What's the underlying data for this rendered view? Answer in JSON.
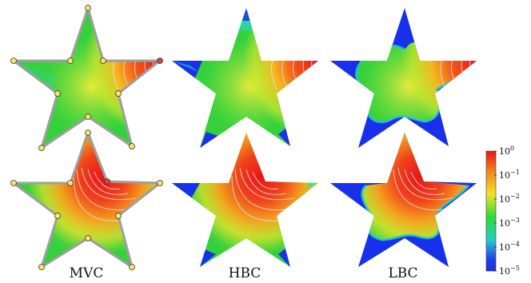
{
  "figure": {
    "columns": [
      {
        "key": "mvc",
        "label": "MVC",
        "cage_visible": true
      },
      {
        "key": "hbc",
        "label": "HBC",
        "cage_visible": false
      },
      {
        "key": "lbc",
        "label": "LBC",
        "cage_visible": false
      }
    ],
    "rows": [
      {
        "key": "outer-vertex",
        "active_vertex_index": 2
      },
      {
        "key": "inner-vertex",
        "active_vertex_index": 3
      }
    ],
    "colorbar": {
      "ticks": [
        {
          "base": "10",
          "exp": "0"
        },
        {
          "base": "10",
          "exp": "−1"
        },
        {
          "base": "10",
          "exp": "−2"
        },
        {
          "base": "10",
          "exp": "−3"
        },
        {
          "base": "10",
          "exp": "−4"
        },
        {
          "base": "10",
          "exp": "−5"
        }
      ],
      "colors": [
        "#e8161a",
        "#f58a1c",
        "#f2e226",
        "#2edb36",
        "#21cfc8",
        "#2142ea",
        "#1530e0"
      ]
    },
    "colors": {
      "cage_stroke": "#9e9e9e",
      "control_point": "#f5e36b",
      "active_control_point": "#d8433a",
      "low_region": "#1930ea",
      "mid_region": "#35d13d",
      "isoline": "#e6e6e6"
    }
  }
}
